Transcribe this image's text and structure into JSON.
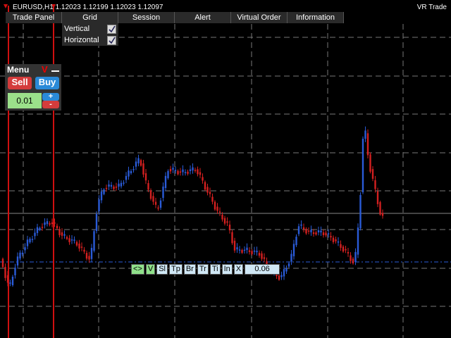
{
  "header": {
    "symbol": "EURUSD,H1 1.12023 1.12199 1.12023 1.12097",
    "expert": "VR Trade"
  },
  "menu_bar": {
    "tabs": [
      "Trade Panel",
      "Grid",
      "Session",
      "Alert",
      "Virtual Order",
      "Information"
    ]
  },
  "grid_menu": {
    "items": [
      "Vertical",
      "Horizontal"
    ]
  },
  "trade_panel": {
    "title": "Menu",
    "close_label": "V",
    "sell": "Sell",
    "buy": "Buy",
    "lot": "0.01",
    "plus": "+",
    "minus": "-"
  },
  "toolbar": {
    "buttons": [
      "<>",
      "V",
      "Sl",
      "Tp",
      "Br",
      "Tr",
      "Ti",
      "In",
      "X"
    ],
    "lot": "0.06"
  }
}
